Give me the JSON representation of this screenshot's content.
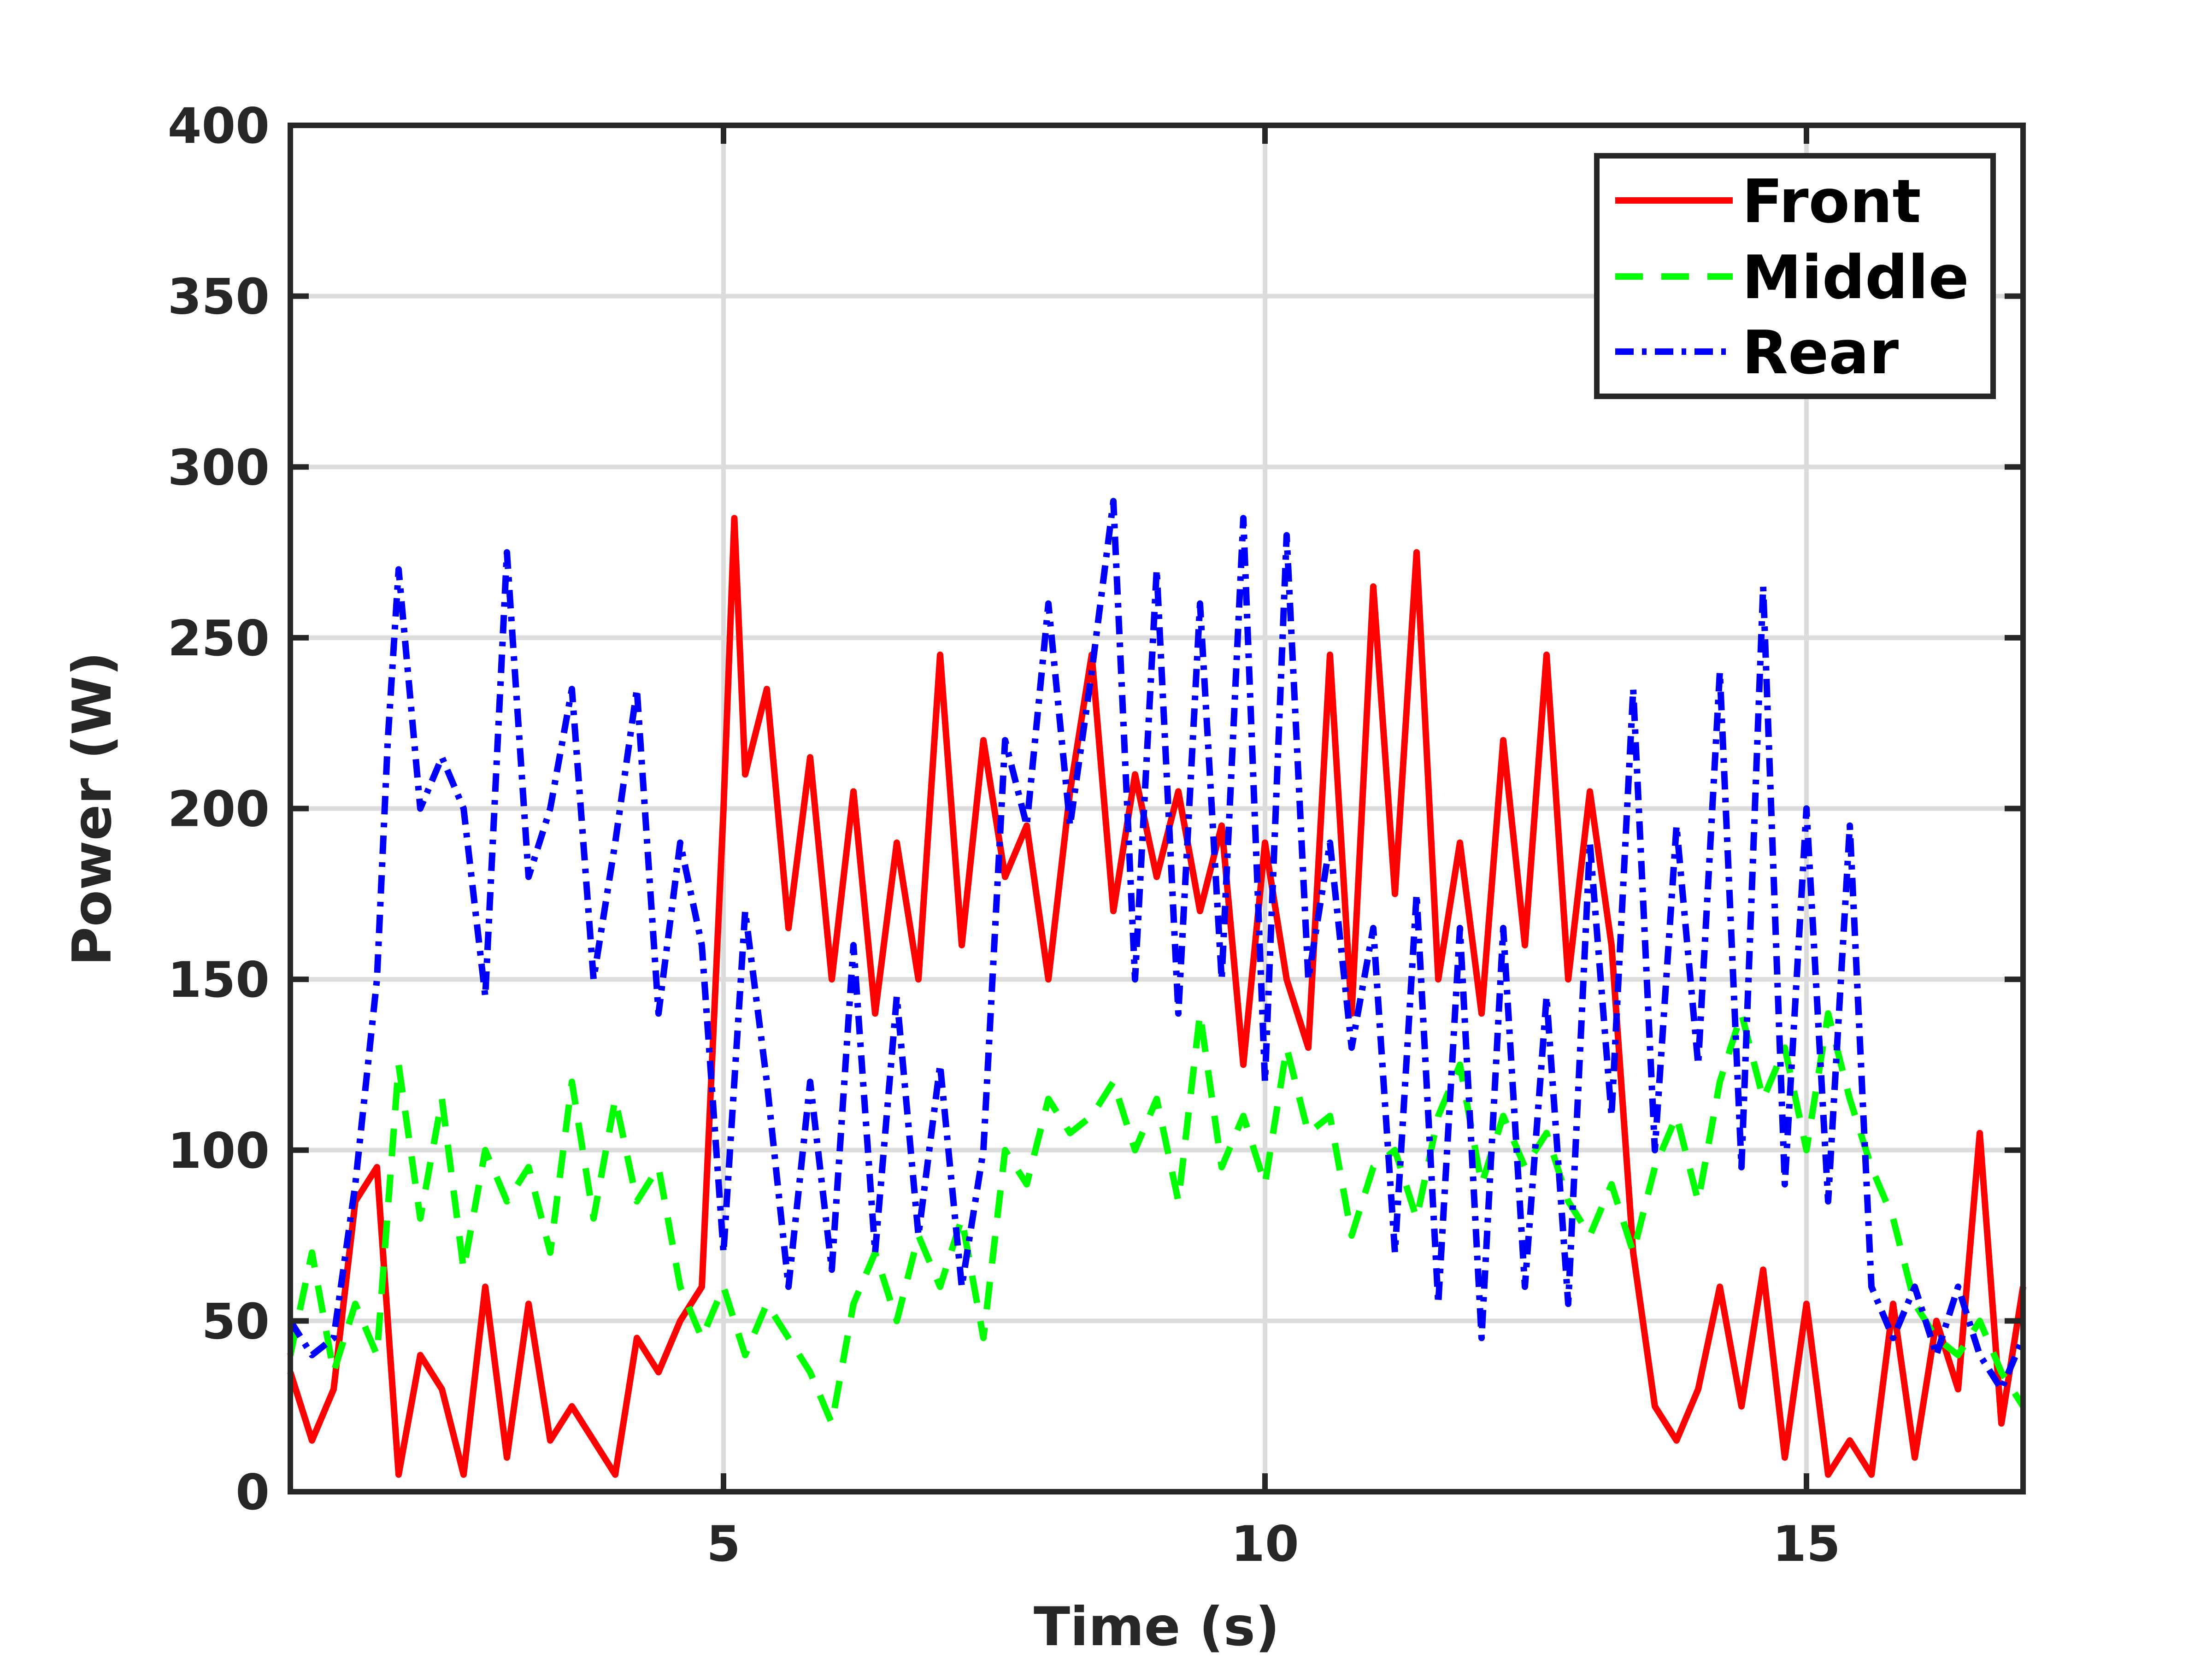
{
  "chart_data": {
    "type": "line",
    "xlabel": "Time (s)",
    "ylabel": "Power (W)",
    "xlim": [
      1,
      17
    ],
    "ylim": [
      0,
      400
    ],
    "xticks": [
      5,
      10,
      15
    ],
    "yticks": [
      0,
      50,
      100,
      150,
      200,
      250,
      300,
      350,
      400
    ],
    "grid": true,
    "legend_position": "top-right",
    "series": [
      {
        "name": "Front",
        "color": "#ff0000",
        "style": "solid",
        "x": [
          1.0,
          1.2,
          1.4,
          1.6,
          1.8,
          2.0,
          2.2,
          2.4,
          2.6,
          2.8,
          3.0,
          3.2,
          3.4,
          3.6,
          3.8,
          4.0,
          4.2,
          4.4,
          4.6,
          4.8,
          5.0,
          5.1,
          5.2,
          5.4,
          5.6,
          5.8,
          6.0,
          6.2,
          6.4,
          6.6,
          6.8,
          7.0,
          7.2,
          7.4,
          7.6,
          7.8,
          8.0,
          8.2,
          8.4,
          8.6,
          8.8,
          9.0,
          9.2,
          9.4,
          9.6,
          9.8,
          10.0,
          10.2,
          10.4,
          10.6,
          10.8,
          11.0,
          11.2,
          11.4,
          11.6,
          11.8,
          12.0,
          12.2,
          12.4,
          12.6,
          12.8,
          13.0,
          13.2,
          13.4,
          13.6,
          13.8,
          14.0,
          14.2,
          14.4,
          14.6,
          14.8,
          15.0,
          15.2,
          15.4,
          15.6,
          15.8,
          16.0,
          16.2,
          16.4,
          16.6,
          16.8,
          17.0
        ],
        "y": [
          35,
          15,
          30,
          85,
          95,
          5,
          40,
          30,
          5,
          60,
          10,
          55,
          15,
          25,
          15,
          5,
          45,
          35,
          50,
          60,
          200,
          285,
          210,
          235,
          165,
          215,
          150,
          205,
          140,
          190,
          150,
          245,
          160,
          220,
          180,
          195,
          150,
          205,
          245,
          170,
          210,
          180,
          205,
          170,
          195,
          125,
          190,
          150,
          130,
          245,
          140,
          265,
          175,
          275,
          150,
          190,
          140,
          220,
          160,
          245,
          150,
          205,
          160,
          70,
          25,
          15,
          30,
          60,
          25,
          65,
          10,
          55,
          5,
          15,
          5,
          55,
          10,
          50,
          30,
          105,
          20,
          60
        ]
      },
      {
        "name": "Middle",
        "color": "#00ff00",
        "style": "dashed",
        "x": [
          1.0,
          1.2,
          1.4,
          1.6,
          1.8,
          2.0,
          2.2,
          2.4,
          2.6,
          2.8,
          3.0,
          3.2,
          3.4,
          3.6,
          3.8,
          4.0,
          4.2,
          4.4,
          4.6,
          4.8,
          5.0,
          5.2,
          5.4,
          5.6,
          5.8,
          6.0,
          6.2,
          6.4,
          6.6,
          6.8,
          7.0,
          7.2,
          7.4,
          7.6,
          7.8,
          8.0,
          8.2,
          8.4,
          8.6,
          8.8,
          9.0,
          9.2,
          9.4,
          9.6,
          9.8,
          10.0,
          10.2,
          10.4,
          10.6,
          10.8,
          11.0,
          11.2,
          11.4,
          11.6,
          11.8,
          12.0,
          12.2,
          12.4,
          12.6,
          12.8,
          13.0,
          13.2,
          13.4,
          13.6,
          13.8,
          14.0,
          14.2,
          14.4,
          14.6,
          14.8,
          15.0,
          15.2,
          15.4,
          15.6,
          15.8,
          16.0,
          16.2,
          16.4,
          16.6,
          16.8,
          17.0
        ],
        "y": [
          40,
          70,
          35,
          55,
          40,
          125,
          80,
          115,
          65,
          100,
          85,
          95,
          70,
          120,
          80,
          115,
          85,
          95,
          60,
          45,
          60,
          40,
          55,
          45,
          35,
          20,
          55,
          70,
          50,
          75,
          60,
          80,
          45,
          100,
          90,
          115,
          105,
          110,
          120,
          100,
          115,
          85,
          140,
          95,
          110,
          90,
          130,
          105,
          110,
          75,
          95,
          100,
          80,
          110,
          125,
          90,
          110,
          95,
          105,
          85,
          75,
          90,
          70,
          95,
          110,
          85,
          120,
          140,
          115,
          130,
          100,
          140,
          115,
          95,
          80,
          55,
          45,
          40,
          50,
          35,
          25
        ]
      },
      {
        "name": "Rear",
        "color": "#0000ff",
        "style": "dashdot",
        "x": [
          1.0,
          1.2,
          1.4,
          1.6,
          1.8,
          1.9,
          2.0,
          2.2,
          2.4,
          2.6,
          2.8,
          3.0,
          3.2,
          3.4,
          3.6,
          3.8,
          4.0,
          4.2,
          4.4,
          4.6,
          4.8,
          5.0,
          5.2,
          5.4,
          5.6,
          5.8,
          6.0,
          6.2,
          6.4,
          6.6,
          6.8,
          7.0,
          7.2,
          7.4,
          7.6,
          7.8,
          8.0,
          8.2,
          8.4,
          8.6,
          8.8,
          9.0,
          9.2,
          9.4,
          9.6,
          9.8,
          10.0,
          10.2,
          10.4,
          10.6,
          10.8,
          11.0,
          11.2,
          11.4,
          11.6,
          11.8,
          12.0,
          12.2,
          12.4,
          12.6,
          12.8,
          13.0,
          13.2,
          13.4,
          13.6,
          13.8,
          14.0,
          14.2,
          14.4,
          14.6,
          14.8,
          15.0,
          15.2,
          15.4,
          15.6,
          15.8,
          16.0,
          16.2,
          16.4,
          16.6,
          16.8,
          17.0
        ],
        "y": [
          50,
          40,
          45,
          90,
          150,
          220,
          270,
          200,
          215,
          200,
          145,
          275,
          180,
          200,
          235,
          150,
          190,
          235,
          140,
          190,
          160,
          70,
          170,
          120,
          60,
          120,
          65,
          160,
          70,
          145,
          75,
          125,
          60,
          100,
          220,
          195,
          260,
          195,
          240,
          290,
          150,
          270,
          140,
          260,
          150,
          285,
          120,
          280,
          150,
          190,
          130,
          165,
          70,
          175,
          55,
          165,
          45,
          165,
          60,
          145,
          55,
          190,
          110,
          235,
          100,
          195,
          125,
          240,
          95,
          265,
          90,
          200,
          85,
          195,
          60,
          45,
          60,
          40,
          60,
          40,
          30,
          45
        ]
      }
    ]
  }
}
